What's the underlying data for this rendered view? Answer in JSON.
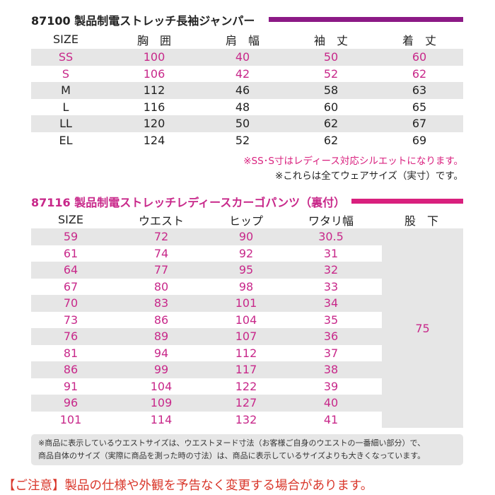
{
  "jacket": {
    "title": "87100 製品制電ストレッチ長袖ジャンパー",
    "headers": [
      "SIZE",
      "胸　囲",
      "肩　幅",
      "袖　丈",
      "着　丈"
    ],
    "rows": [
      [
        "SS",
        "100",
        "40",
        "50",
        "60"
      ],
      [
        "S",
        "106",
        "42",
        "52",
        "62"
      ],
      [
        "M",
        "112",
        "46",
        "58",
        "63"
      ],
      [
        "L",
        "116",
        "48",
        "60",
        "65"
      ],
      [
        "LL",
        "120",
        "50",
        "62",
        "67"
      ],
      [
        "EL",
        "124",
        "52",
        "62",
        "69"
      ]
    ],
    "note1": "※SS･S寸はレディース対応シルエットになります。",
    "note2": "※これらは全てウェアサイズ（実寸）です。"
  },
  "pants": {
    "title": "87116 製品制電ストレッチレディースカーゴパンツ（裏付）",
    "headers": [
      "SIZE",
      "ウエスト",
      "ヒップ",
      "ワタリ幅",
      "股　下"
    ],
    "rows": [
      [
        "59",
        "72",
        "90",
        "30.5"
      ],
      [
        "61",
        "74",
        "92",
        "31"
      ],
      [
        "64",
        "77",
        "95",
        "32"
      ],
      [
        "67",
        "80",
        "98",
        "33"
      ],
      [
        "70",
        "83",
        "101",
        "34"
      ],
      [
        "73",
        "86",
        "104",
        "35"
      ],
      [
        "76",
        "89",
        "107",
        "36"
      ],
      [
        "81",
        "94",
        "112",
        "37"
      ],
      [
        "86",
        "99",
        "117",
        "38"
      ],
      [
        "91",
        "104",
        "122",
        "39"
      ],
      [
        "96",
        "109",
        "127",
        "40"
      ],
      [
        "101",
        "114",
        "132",
        "41"
      ]
    ],
    "inseam": "75",
    "note_line1": "※商品に表示しているウエストサイズは、ウエストヌード寸法（お客様ご自身のウエストの一番細い部分）で、",
    "note_line2": "商品自体のサイズ（実際に商品を測った時の寸法）は、商品に表示しているサイズよりも大きくなっています。"
  },
  "footer": "【ご注意】製品の仕様や外観を予告なく変更する場合があります。",
  "colors": {
    "purple": "#8c1a86",
    "pink": "#d9207e",
    "pinkText": "#c8288a",
    "gray": "#e6e6e6",
    "red": "#d9362a"
  }
}
